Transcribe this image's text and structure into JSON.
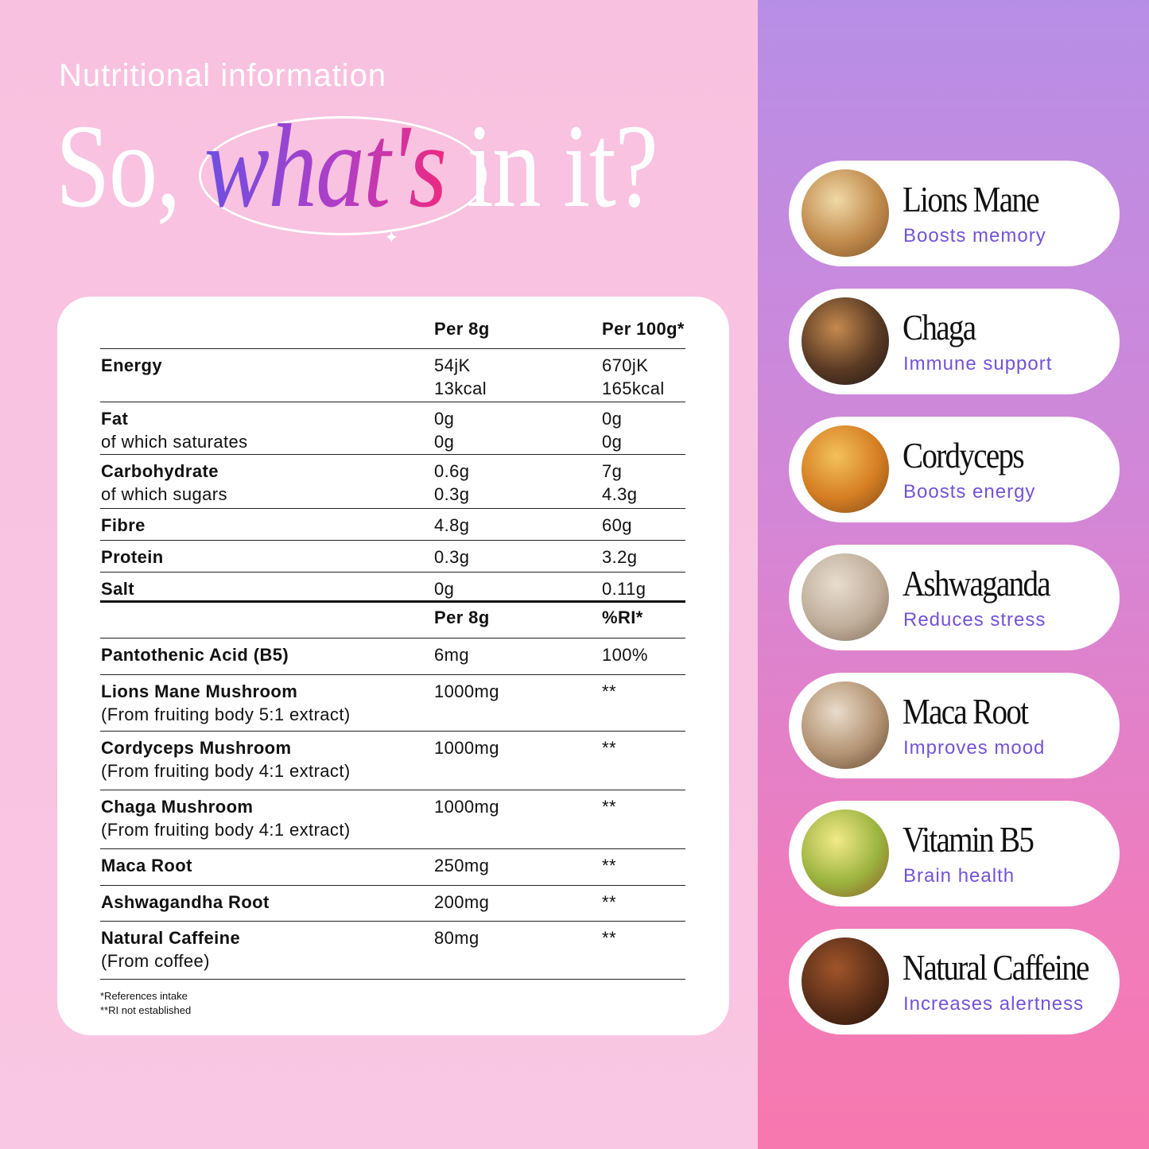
{
  "header": {
    "kicker": "Nutritional information",
    "title_pre": "So,",
    "title_em": "what's",
    "title_post": "in it?"
  },
  "table": {
    "rows": [
      {
        "c0": "",
        "c0b": "",
        "c1": "Per 8g",
        "c2": "Per 100g*",
        "head": true
      },
      {
        "c0": "Energy",
        "c0b": "",
        "c1": "54jK\n13kcal",
        "c2": "670jK\n165kcal"
      },
      {
        "c0": "Fat",
        "c0b": "of which saturates",
        "c1": "0g\n0g",
        "c2": "0g\n0g"
      },
      {
        "c0": "Carbohydrate",
        "c0b": "of which sugars",
        "c1": "0.6g\n0.3g",
        "c2": "7g\n4.3g"
      },
      {
        "c0": "Fibre",
        "c0b": "",
        "c1": "4.8g",
        "c2": "60g"
      },
      {
        "c0": "Protein",
        "c0b": "",
        "c1": "0.3g",
        "c2": "3.2g"
      },
      {
        "c0": "Salt",
        "c0b": "",
        "c1": "0g",
        "c2": "0.11g"
      },
      {
        "c0": "",
        "c0b": "",
        "c1": "Per 8g",
        "c2": "%RI*",
        "head": true
      },
      {
        "c0": "Pantothenic Acid (B5)",
        "c0b": "",
        "c1": "6mg",
        "c2": "100%"
      },
      {
        "c0": "Lions Mane Mushroom",
        "c0b": "(From fruiting body 5:1 extract)",
        "c1": "1000mg",
        "c2": "**"
      },
      {
        "c0": "Cordyceps Mushroom",
        "c0b": "(From fruiting body 4:1 extract)",
        "c1": "1000mg",
        "c2": "**"
      },
      {
        "c0": "Chaga Mushroom",
        "c0b": "(From fruiting body 4:1 extract)",
        "c1": "1000mg",
        "c2": "**"
      },
      {
        "c0": "Maca Root",
        "c0b": "",
        "c1": "250mg",
        "c2": "**"
      },
      {
        "c0": "Ashwagandha Root",
        "c0b": "",
        "c1": "200mg",
        "c2": "**"
      },
      {
        "c0": "Natural Caffeine",
        "c0b": "(From coffee)",
        "c1": "80mg",
        "c2": "**"
      }
    ],
    "footnote1": "*References intake",
    "footnote2": "**RI not established"
  },
  "ingredients": [
    {
      "name": "Lions Mane",
      "benefit": "Boosts memory",
      "colors": [
        "#f1d9a8",
        "#c08a4c",
        "#7a5328"
      ]
    },
    {
      "name": "Chaga",
      "benefit": "Immune support",
      "colors": [
        "#c58a4e",
        "#5a3a24",
        "#201612"
      ]
    },
    {
      "name": "Cordyceps",
      "benefit": "Boosts energy",
      "colors": [
        "#f3c15a",
        "#d57d22",
        "#7a4a1a"
      ]
    },
    {
      "name": "Ashwaganda",
      "benefit": "Reduces stress",
      "colors": [
        "#e8ddd0",
        "#bfae9a",
        "#7e6b58"
      ]
    },
    {
      "name": "Maca Root",
      "benefit": "Improves mood",
      "colors": [
        "#e9dccb",
        "#b39372",
        "#5e4632"
      ]
    },
    {
      "name": "Vitamin B5",
      "benefit": "Brain health",
      "colors": [
        "#f2ea8a",
        "#9cb43e",
        "#8a5a2a"
      ]
    },
    {
      "name": "Natural Caffeine",
      "benefit": "Increases alertness",
      "colors": [
        "#a0552a",
        "#5a2e18",
        "#241108"
      ]
    }
  ],
  "colors": {
    "accent": "#7352d8",
    "gradient_start": "#6b4fe2",
    "gradient_end": "#f2287a"
  }
}
